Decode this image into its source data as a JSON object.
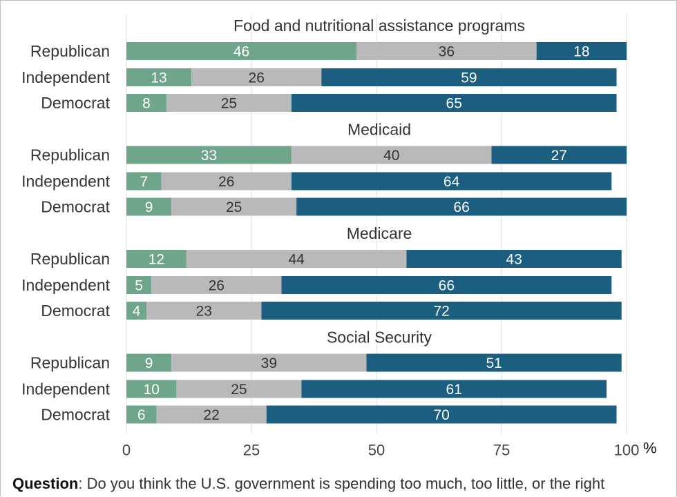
{
  "chart_data": {
    "type": "bar",
    "orientation": "horizontal",
    "stacked": true,
    "groups": [
      {
        "title": "Food and nutritional assistance programs",
        "rows": [
          {
            "label": "Republican",
            "values": [
              46,
              36,
              18
            ]
          },
          {
            "label": "Independent",
            "values": [
              13,
              26,
              59
            ]
          },
          {
            "label": "Democrat",
            "values": [
              8,
              25,
              65
            ]
          }
        ]
      },
      {
        "title": "Medicaid",
        "rows": [
          {
            "label": "Republican",
            "values": [
              33,
              40,
              27
            ]
          },
          {
            "label": "Independent",
            "values": [
              7,
              26,
              64
            ]
          },
          {
            "label": "Democrat",
            "values": [
              9,
              25,
              66
            ]
          }
        ]
      },
      {
        "title": "Medicare",
        "rows": [
          {
            "label": "Republican",
            "values": [
              12,
              44,
              43
            ]
          },
          {
            "label": "Independent",
            "values": [
              5,
              26,
              66
            ]
          },
          {
            "label": "Democrat",
            "values": [
              4,
              23,
              72
            ]
          }
        ]
      },
      {
        "title": "Social Security",
        "rows": [
          {
            "label": "Republican",
            "values": [
              9,
              39,
              51
            ]
          },
          {
            "label": "Independent",
            "values": [
              10,
              25,
              61
            ]
          },
          {
            "label": "Democrat",
            "values": [
              6,
              22,
              70
            ]
          }
        ]
      }
    ],
    "segment_colors": [
      "#6fa58a",
      "#b9b9b9",
      "#1b5e7f"
    ],
    "label_colors": [
      "#ffffff",
      "#333333",
      "#ffffff"
    ],
    "xlim": [
      0,
      100
    ],
    "xticks": [
      "0",
      "25",
      "50",
      "75",
      "100"
    ],
    "x_unit": "%",
    "grid": "vertical"
  },
  "footer": {
    "question_label": "Question",
    "question_text": ": Do you think the U.S. government is spending too much, too little, or the right"
  }
}
